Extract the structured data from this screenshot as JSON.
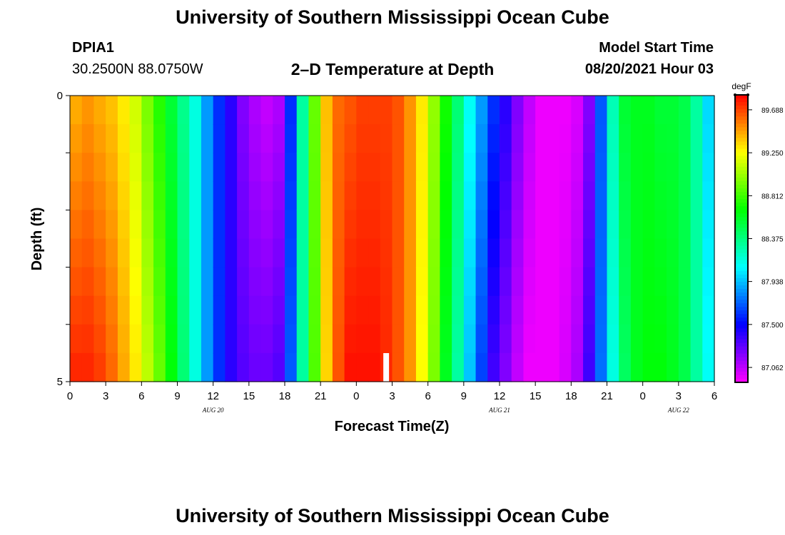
{
  "header": {
    "title": "University of Southern Mississippi Ocean Cube",
    "station_id": "DPIA1",
    "coordinates": "30.2500N  88.0750W",
    "subtitle": "2–D Temperature at Depth",
    "model_start_label": "Model Start Time",
    "model_start_value": "08/20/2021 Hour 03"
  },
  "footer": {
    "title": "University of Southern Mississippi Ocean Cube"
  },
  "chart_data": {
    "type": "heatmap",
    "title": "2–D Temperature at Depth",
    "xlabel": "Forecast Time(Z)",
    "ylabel": "Depth (ft)",
    "colorbar_unit": "degF",
    "x_start": 0,
    "x_step_hours": 1,
    "xlim": [
      0,
      54
    ],
    "ylim": [
      0,
      5
    ],
    "x_ticks": [
      0,
      3,
      6,
      9,
      12,
      15,
      18,
      21,
      24,
      27,
      30,
      33,
      36,
      39,
      42,
      45,
      48,
      51,
      54
    ],
    "x_tick_labels": [
      "0",
      "3",
      "6",
      "9",
      "12",
      "15",
      "18",
      "21",
      "0",
      "3",
      "6",
      "9",
      "12",
      "15",
      "18",
      "21",
      "0",
      "3",
      "6"
    ],
    "date_labels": [
      {
        "x": 12,
        "label": "AUG 20"
      },
      {
        "x": 36,
        "label": "AUG 21"
      },
      {
        "x": 51,
        "label": "AUG 22"
      }
    ],
    "y_ticks": [
      0,
      1,
      2,
      3,
      4,
      5
    ],
    "y_tick_labels": [
      "0",
      "",
      "",
      "",
      "",
      "5"
    ],
    "depth_levels": [
      0.25,
      0.75,
      1.25,
      1.75,
      2.25,
      2.75,
      3.25,
      3.75,
      4.25,
      4.75
    ],
    "color_range": [
      86.91,
      89.84
    ],
    "colorbar_ticks": [
      87.062,
      87.5,
      87.938,
      88.375,
      88.812,
      89.25,
      89.688
    ],
    "colorbar_tick_labels": [
      "87.062",
      "87.500",
      "87.938",
      "88.375",
      "88.812",
      "89.250",
      "89.688"
    ],
    "surface_temperature_degF": [
      89.45,
      89.5,
      89.45,
      89.4,
      89.3,
      89.15,
      88.95,
      88.75,
      88.55,
      88.35,
      88.15,
      87.85,
      87.6,
      87.4,
      87.2,
      87.1,
      87.05,
      87.1,
      87.6,
      88.3,
      88.9,
      89.4,
      89.6,
      89.65,
      89.7,
      89.7,
      89.7,
      89.65,
      89.5,
      89.3,
      89.0,
      88.7,
      88.4,
      88.1,
      87.85,
      87.6,
      87.4,
      87.2,
      87.05,
      86.95,
      86.95,
      86.95,
      87.0,
      87.2,
      87.7,
      88.25,
      88.55,
      88.6,
      88.6,
      88.55,
      88.55,
      88.5,
      88.3,
      88.0,
      87.9
    ],
    "bottom_temperature_degF": [
      89.75,
      89.75,
      89.7,
      89.6,
      89.45,
      89.3,
      89.1,
      88.9,
      88.65,
      88.4,
      88.15,
      87.85,
      87.6,
      87.4,
      87.3,
      87.25,
      87.25,
      87.3,
      87.7,
      88.3,
      88.85,
      89.35,
      89.65,
      89.8,
      89.8,
      89.8,
      89.75,
      89.65,
      89.5,
      89.25,
      88.95,
      88.6,
      88.3,
      87.95,
      87.65,
      87.35,
      87.2,
      87.05,
      86.95,
      86.95,
      86.95,
      87.0,
      87.1,
      87.35,
      87.75,
      88.15,
      88.45,
      88.6,
      88.65,
      88.65,
      88.6,
      88.5,
      88.3,
      88.1,
      88.0
    ],
    "current_time_marker_x": 26.5
  }
}
